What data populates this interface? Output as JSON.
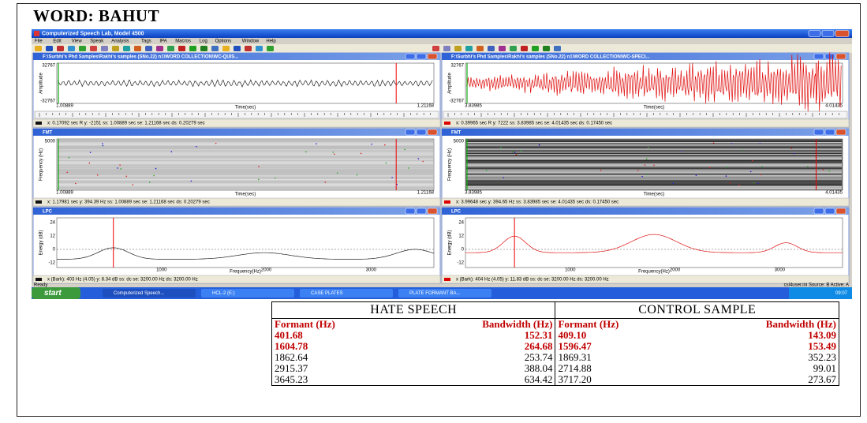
{
  "title": "WORD: BAHUT",
  "app": {
    "title": "Computerized Speech Lab, Model 4500",
    "menu": [
      "File",
      "Edit",
      "View",
      "Speak",
      "Analysis",
      "Tags",
      "IPA",
      "Macros",
      "Log",
      "Options",
      "Window",
      "Help"
    ],
    "panels": [
      {
        "title": "F:\\Surbhi's Phd Samples\\Rakhi's samples (SNo.22) n1\\WORD COLLECTION\\WC-QUIS...",
        "y_label": "Amplitude",
        "x_label": "Time(sec)",
        "y_ticks": [
          "32767",
          "-32767"
        ],
        "x_ticks": [
          "1.00889",
          "1.21168"
        ],
        "status": "x: 0.17092 sec    R   y: -2151     ss: 1.00889 sec   se: 1.21168 sec   ds: 0.20279 sec"
      },
      {
        "title": "F:\\Surbhi's Phd Samples\\Rakhi's samples (SNo.22) n1\\WORD COLLECTION\\WC-SPECI...",
        "y_label": "Amplitude",
        "x_label": "Time(sec)",
        "y_ticks": [
          "32767",
          "-32767"
        ],
        "x_ticks": [
          "3.83985",
          "4.01435"
        ],
        "status": "x: 0.39965 sec    R   y: 7222     ss: 3.83985 sec   se: 4.01435 sec   ds: 0.17450 sec"
      },
      {
        "title": "FMT",
        "y_label": "Frequency (Hz)",
        "x_label": "Time(sec)",
        "y_ticks": [
          "5000"
        ],
        "x_ticks": [
          "1.00889",
          "1.21168"
        ],
        "status": "x: 1.17981 sec     y: 394.39 Hz     ss: 1.00889 sec   se: 1.21168 sec   ds: 0.20279 sec"
      },
      {
        "title": "FMT",
        "y_label": "Frequency (Hz)",
        "x_label": "Time(sec)",
        "y_ticks": [
          "5000"
        ],
        "x_ticks": [
          "3.83985",
          "4.01435"
        ],
        "status": "x: 3.99648 sec     y: 394.65 Hz     ss: 3.83985 sec   se: 4.01435 sec   ds: 0.17450 sec"
      },
      {
        "title": "LPC",
        "y_label": "Energy (dB)",
        "x_label": "Frequency(Hz)",
        "y_ticks": [
          "24",
          "12",
          "0",
          "-12"
        ],
        "x_ticks": [
          "1000",
          "2000",
          "3000"
        ],
        "status": "x (Bark): 403 Hz (4.05)     y: 8.34 dB     ss: dc     se: 3200.00 Hz   ds: 3200.00 Hz"
      },
      {
        "title": "LPC",
        "y_label": "Energy (dB)",
        "x_label": "Frequency(Hz)",
        "y_ticks": [
          "24",
          "12",
          "0",
          "-12"
        ],
        "x_ticks": [
          "1000",
          "2000",
          "3000"
        ],
        "status": "x (Bark): 404 Hz (4.05)     y: 11.83 dB     ss: dc     se: 3200.00 Hz   ds: 3200.00 Hz"
      }
    ],
    "ready": "Ready",
    "status_right": "csl4user.ini   Source: B   Active: A",
    "taskbar": {
      "start": "start",
      "items": [
        "Computerized Speech...",
        "HCL-2 (E:)",
        "CASE PLATES",
        "PLATE FORMANT BA..."
      ],
      "clock": "09:07"
    }
  },
  "table": {
    "groups": [
      "HATE SPEECH",
      "CONTROL SAMPLE"
    ],
    "columns": [
      "Formant (Hz)",
      "Bandwidth (Hz)",
      "Formant (Hz)",
      "Bandwidth (Hz)"
    ],
    "rows": [
      [
        "401.68",
        "152.31",
        "409.10",
        "143.09"
      ],
      [
        "1604.78",
        "264.68",
        "1596.47",
        "153.49"
      ],
      [
        "1862.64",
        "253.74",
        "1869.31",
        "352.23"
      ],
      [
        "2915.37",
        "388.04",
        "2714.88",
        "99.01"
      ],
      [
        "3645.23",
        "634.42",
        "3717.20",
        "273.67"
      ]
    ]
  }
}
